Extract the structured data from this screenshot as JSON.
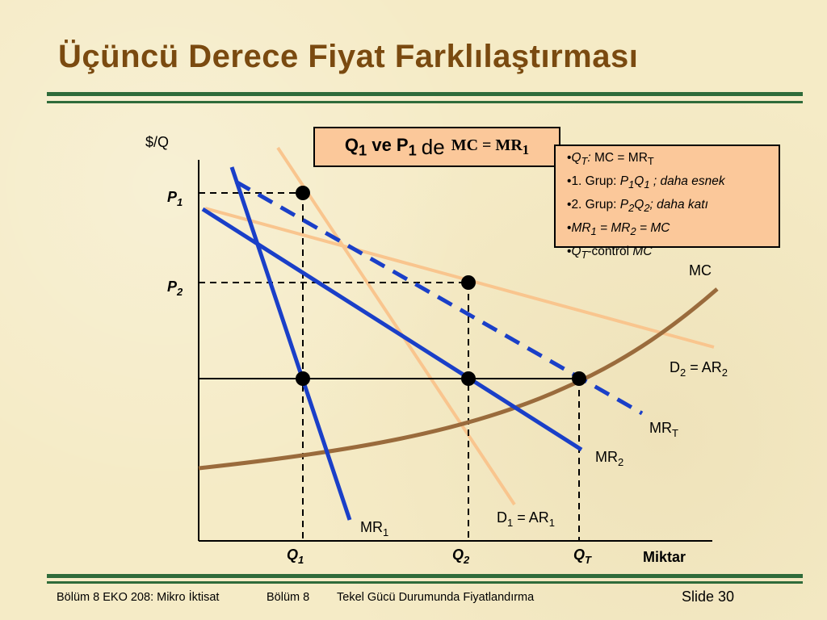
{
  "slide": {
    "title": "Üçüncü Derece Fiyat Farklılaştırması",
    "number": "Slide 30",
    "footer": {
      "course": "Bölüm 8 EKO 208: Mikro İktisat",
      "chapter": "Bölüm 8",
      "topic": "Tekel Gücü Durumunda Fiyatlandırma"
    }
  },
  "chart": {
    "y_axis_label": "$/Q",
    "x_axis_label": "Miktar",
    "labels": {
      "p1": [
        "P",
        "1"
      ],
      "p2": [
        "P",
        "2"
      ],
      "q1": [
        "Q",
        "1"
      ],
      "q2": [
        "Q",
        "2"
      ],
      "qt": [
        "Q",
        "T"
      ],
      "mc": "MC",
      "d2": [
        "D",
        "2",
        " = AR",
        "2"
      ],
      "mrt": [
        "MR",
        "T"
      ],
      "mr2": [
        "MR",
        "2"
      ],
      "d1": [
        "D",
        "1",
        " = AR",
        "1"
      ],
      "mr1": [
        "MR",
        "1"
      ]
    },
    "colors": {
      "mr_lines": "#1a3fc8",
      "demand_lines": "#f9c58e",
      "mc_curve": "#9a6b3c",
      "axes": "#000000"
    }
  },
  "condition_box": {
    "q": "Q",
    "q_sub": "1",
    "ve": " ve P",
    "p_sub": "1",
    "de": "de",
    "eq": "MC = MR",
    "eq_sub": "1"
  },
  "notes_box": {
    "bullet": "•",
    "row1": {
      "q": "Q",
      "sub": "T",
      "colon": ":",
      "text": " MC = MR",
      "text_sub": "T"
    },
    "row2": {
      "text": "1. Grup: ",
      "p": "P",
      "p_sub": "1",
      "q": "Q",
      "q_sub": "1",
      "rest": " ; daha esnek"
    },
    "row3": {
      "text": "2. Grup: ",
      "p": "P",
      "p_sub": "2",
      "q": "Q",
      "q_sub": "2",
      "rest": "; daha katı"
    },
    "row4": {
      "mr": "MR",
      "s1": "1",
      "eq": " = MR",
      "s2": "2",
      "tail": " = MC"
    },
    "row5": {
      "q": "Q",
      "sub": "T",
      "mid": "-control ",
      "mc": "MC"
    }
  }
}
